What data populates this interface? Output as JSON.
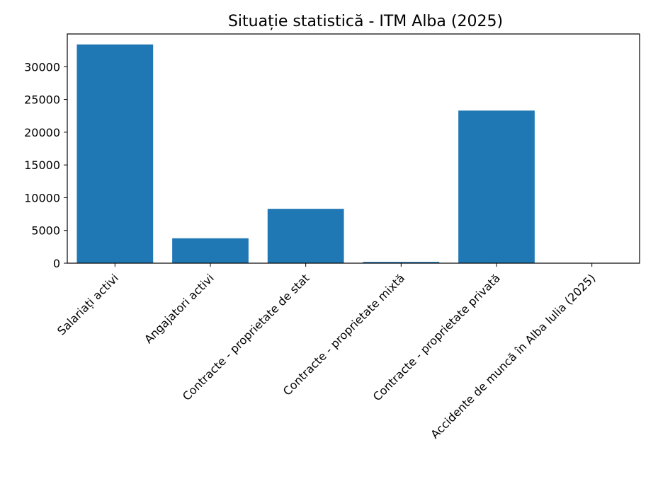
{
  "chart_data": {
    "type": "bar",
    "title": "Situație statistică - ITM Alba (2025)",
    "xlabel": "",
    "ylabel": "",
    "categories": [
      "Salariați activi",
      "Angajatori activi",
      "Contracte - proprietate de stat",
      "Contracte - proprietate mixtă",
      "Contracte - proprietate privată",
      "Accidente de muncă în Alba Iulia (2025)"
    ],
    "values": [
      33400,
      3800,
      8300,
      200,
      23300,
      20
    ],
    "ylim": [
      0,
      35000
    ],
    "yticks": [
      0,
      5000,
      10000,
      15000,
      20000,
      25000,
      30000
    ],
    "bar_color": "#1f77b4",
    "grid": false,
    "legend": "none"
  }
}
